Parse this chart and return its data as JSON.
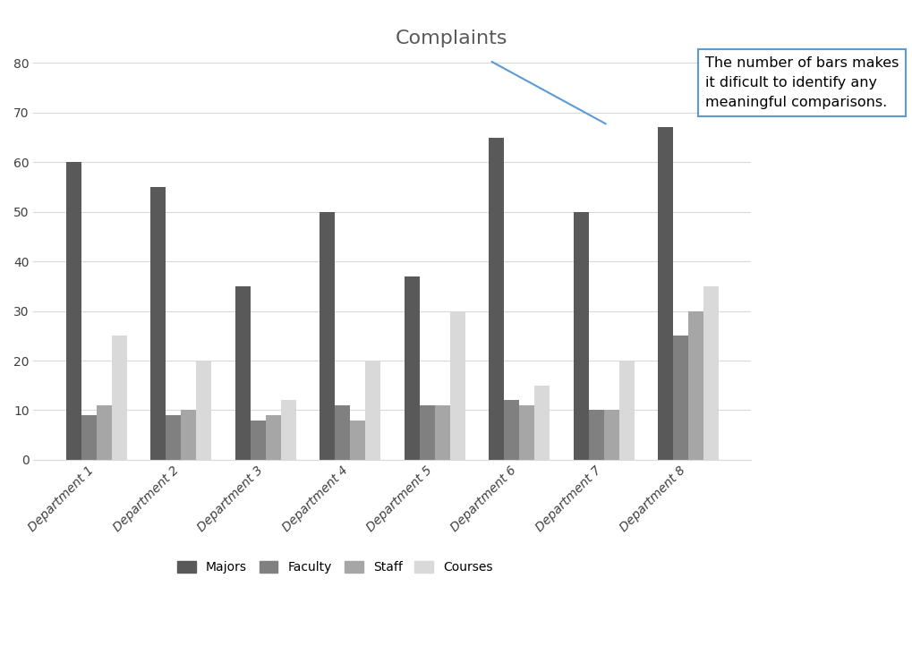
{
  "title": "Complaints",
  "departments": [
    "Department 1",
    "Department 2",
    "Department 3",
    "Department 4",
    "Department 5",
    "Department 6",
    "Department 7",
    "Department 8"
  ],
  "series": {
    "Majors": [
      60,
      55,
      35,
      50,
      37,
      65,
      50,
      67
    ],
    "Faculty": [
      9,
      9,
      8,
      11,
      11,
      12,
      10,
      25
    ],
    "Staff": [
      11,
      10,
      9,
      8,
      11,
      11,
      10,
      30
    ],
    "Courses": [
      25,
      20,
      12,
      20,
      30,
      15,
      20,
      35
    ]
  },
  "colors": {
    "Majors": "#595959",
    "Faculty": "#808080",
    "Staff": "#a6a6a6",
    "Courses": "#d9d9d9"
  },
  "ylim": [
    0,
    90
  ],
  "yticks": [
    0,
    10,
    20,
    30,
    40,
    50,
    60,
    70,
    80
  ],
  "annotation_text": "The number of bars makes\nit dificult to identify any\nmeaningful comparisons.",
  "background_color": "#ffffff",
  "grid_color": "#d9d9d9",
  "bar_width": 0.18
}
